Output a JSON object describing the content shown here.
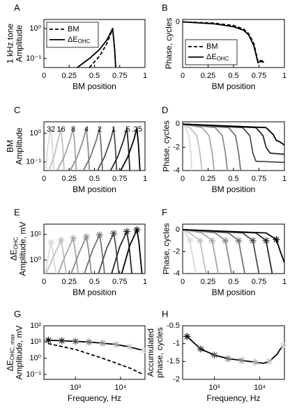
{
  "chart_data": [
    {
      "type": "line",
      "panel": "A",
      "xlabel": "BM position",
      "ylabel": [
        "1 kHz tone",
        "Amplitude"
      ],
      "xlim": [
        0,
        1
      ],
      "xticks": [
        0,
        0.25,
        0.5,
        0.75,
        1
      ],
      "ylim": [
        0.05,
        2
      ],
      "ylog": true,
      "yticks": [
        {
          "value": 0.1,
          "label": "10⁻¹"
        },
        {
          "value": 1,
          "label": "10⁰"
        }
      ],
      "legend": "upper left",
      "series": [
        {
          "name": "BM",
          "color": "#000000",
          "dash": true,
          "x": [
            0.45,
            0.55,
            0.62,
            0.67,
            0.68,
            0.7,
            0.71
          ],
          "values": [
            0.05,
            0.12,
            0.3,
            0.8,
            1,
            0.2,
            0.05
          ]
        },
        {
          "name": "ΔE",
          "name_sub": "OHC",
          "color": "#000000",
          "x": [
            0.33,
            0.45,
            0.55,
            0.62,
            0.68,
            0.7,
            0.71
          ],
          "values": [
            0.05,
            0.1,
            0.2,
            0.4,
            1,
            0.2,
            0.05
          ]
        }
      ]
    },
    {
      "type": "line",
      "panel": "B",
      "xlabel": "BM position",
      "ylabel": "Phase, cycles",
      "xlim": [
        0,
        1
      ],
      "xticks": [
        0,
        0.25,
        0.5,
        0.75,
        1
      ],
      "ylim": [
        -3.8,
        0.2
      ],
      "yticks": [
        0
      ],
      "legend": "lower left",
      "series": [
        {
          "name": "BM",
          "color": "#000000",
          "dash": true,
          "x": [
            0,
            0.3,
            0.5,
            0.6,
            0.65,
            0.7,
            0.74,
            0.76,
            0.8
          ],
          "values": [
            0,
            -0.1,
            -0.3,
            -0.6,
            -1,
            -1.8,
            -3.3,
            -3.2,
            -3.3
          ]
        },
        {
          "name": "ΔE",
          "name_sub": "OHC",
          "color": "#000000",
          "x": [
            0,
            0.3,
            0.5,
            0.6,
            0.65,
            0.7,
            0.74,
            0.76,
            0.8
          ],
          "values": [
            0,
            -0.15,
            -0.4,
            -0.7,
            -1.1,
            -2,
            -3.4,
            -3.3,
            -3.35
          ]
        }
      ]
    },
    {
      "type": "line",
      "panel": "C",
      "xlabel": "BM position",
      "ylabel": [
        "BM",
        "Amplitude"
      ],
      "xlim": [
        0,
        1
      ],
      "xticks": [
        0,
        0.25,
        0.5,
        0.75,
        1
      ],
      "ylim": [
        0.05,
        2.5
      ],
      "ylog": true,
      "yticks": [
        {
          "value": 0.1,
          "label": "10⁻¹"
        },
        {
          "value": 1,
          "label": "10⁰"
        }
      ],
      "series_labels": "peak",
      "series": [
        {
          "name": "32",
          "color": "#d9d9d9",
          "x": [
            0.02,
            0.04,
            0.07,
            0.085,
            0.1
          ],
          "values": [
            0.06,
            0.4,
            1.5,
            0.3,
            0.05
          ]
        },
        {
          "name": "16",
          "color": "#bfbfbf",
          "x": [
            0.05,
            0.1,
            0.14,
            0.17,
            0.185,
            0.2
          ],
          "values": [
            0.05,
            0.15,
            0.6,
            1.5,
            0.4,
            0.05
          ]
        },
        {
          "name": "8",
          "color": "#a6a6a6",
          "x": [
            0.13,
            0.2,
            0.26,
            0.29,
            0.305,
            0.32
          ],
          "values": [
            0.05,
            0.15,
            0.6,
            1.5,
            0.4,
            0.05
          ]
        },
        {
          "name": "4",
          "color": "#8c8c8c",
          "x": [
            0.26,
            0.33,
            0.39,
            0.42,
            0.435,
            0.45
          ],
          "values": [
            0.05,
            0.15,
            0.6,
            1.5,
            0.4,
            0.05
          ]
        },
        {
          "name": "2",
          "color": "#737373",
          "x": [
            0.39,
            0.46,
            0.52,
            0.55,
            0.565,
            0.58
          ],
          "values": [
            0.05,
            0.15,
            0.6,
            1.5,
            0.4,
            0.05
          ]
        },
        {
          "name": "1",
          "color": "#4d4d4d",
          "x": [
            0.53,
            0.6,
            0.66,
            0.69,
            0.705,
            0.72
          ],
          "values": [
            0.05,
            0.15,
            0.6,
            1.5,
            0.4,
            0.05
          ]
        },
        {
          "name": ".5",
          "color": "#262626",
          "x": [
            0.66,
            0.73,
            0.79,
            0.82,
            0.835,
            0.85
          ],
          "values": [
            0.05,
            0.15,
            0.6,
            1.5,
            0.4,
            0.05
          ]
        },
        {
          "name": ".25",
          "color": "#000000",
          "x": [
            0.76,
            0.83,
            0.89,
            0.92,
            0.935,
            0.95
          ],
          "values": [
            0.05,
            0.15,
            0.6,
            1.5,
            0.4,
            0.05
          ]
        }
      ]
    },
    {
      "type": "line",
      "panel": "D",
      "xlabel": "BM position",
      "ylabel": "Phase, cycles",
      "xlim": [
        0,
        1
      ],
      "xticks": [
        0,
        0.25,
        0.5,
        0.75,
        1
      ],
      "ylim": [
        -4,
        0.2
      ],
      "yticks": [
        0,
        -2,
        -4
      ],
      "series": [
        {
          "color": "#d9d9d9",
          "x": [
            0,
            0.03,
            0.06,
            0.08,
            0.09
          ],
          "values": [
            0,
            -0.3,
            -1,
            -2.5,
            -4
          ]
        },
        {
          "color": "#bfbfbf",
          "x": [
            0,
            0.07,
            0.14,
            0.17,
            0.19
          ],
          "values": [
            0,
            -0.3,
            -1,
            -2.5,
            -4
          ]
        },
        {
          "color": "#a6a6a6",
          "x": [
            0,
            0.19,
            0.26,
            0.29,
            0.31
          ],
          "values": [
            0,
            -0.3,
            -1,
            -2.5,
            -4
          ]
        },
        {
          "color": "#8c8c8c",
          "x": [
            0,
            0.32,
            0.39,
            0.42,
            0.44
          ],
          "values": [
            0,
            -0.3,
            -1,
            -2.5,
            -4
          ]
        },
        {
          "color": "#737373",
          "x": [
            0,
            0.45,
            0.52,
            0.55,
            0.57
          ],
          "values": [
            0,
            -0.3,
            -1,
            -2.5,
            -4
          ]
        },
        {
          "color": "#4d4d4d",
          "x": [
            0,
            0.59,
            0.66,
            0.69,
            0.72,
            1
          ],
          "values": [
            0,
            -0.3,
            -1,
            -2.5,
            -3.2,
            -3.3
          ]
        },
        {
          "color": "#262626",
          "x": [
            0,
            0.72,
            0.79,
            0.82,
            0.86,
            1
          ],
          "values": [
            0,
            -0.3,
            -1,
            -2,
            -2.5,
            -2.6
          ]
        },
        {
          "color": "#000000",
          "x": [
            0,
            0.82,
            0.89,
            0.92,
            0.95,
            1
          ],
          "values": [
            0,
            -0.3,
            -0.9,
            -1.4,
            -1.5,
            -1.8
          ]
        }
      ]
    },
    {
      "type": "line",
      "panel": "E",
      "xlabel": "BM position",
      "ylabel": [
        {
          "text": "ΔE",
          "sub": "OHC"
        },
        "Amplitude, mV"
      ],
      "xlim": [
        0,
        1
      ],
      "xticks": [
        0,
        0.25,
        0.5,
        0.75,
        1
      ],
      "ylim": [
        0.3,
        25
      ],
      "ylog": true,
      "yticks": [
        {
          "value": 1,
          "label": "10⁰"
        },
        {
          "value": 10,
          "label": "10¹"
        }
      ],
      "series": [
        {
          "color": "#d9d9d9",
          "x": [
            0.01,
            0.04,
            0.07,
            0.09,
            0.12
          ],
          "values": [
            0.3,
            1.2,
            5,
            1.7,
            0.3
          ]
        },
        {
          "color": "#bfbfbf",
          "x": [
            0.02,
            0.1,
            0.17,
            0.19,
            0.22
          ],
          "values": [
            0.3,
            1.5,
            6,
            2,
            0.3
          ]
        },
        {
          "color": "#a6a6a6",
          "x": [
            0.14,
            0.22,
            0.29,
            0.31,
            0.34
          ],
          "values": [
            0.3,
            1.8,
            7,
            2.3,
            0.3
          ]
        },
        {
          "color": "#8c8c8c",
          "x": [
            0.27,
            0.35,
            0.42,
            0.44,
            0.47
          ],
          "values": [
            0.3,
            2,
            8,
            2.7,
            0.3
          ]
        },
        {
          "color": "#737373",
          "x": [
            0.4,
            0.48,
            0.55,
            0.57,
            0.6
          ],
          "values": [
            0.3,
            2.4,
            9.5,
            3.2,
            0.3
          ]
        },
        {
          "color": "#4d4d4d",
          "x": [
            0.54,
            0.62,
            0.69,
            0.71,
            0.74
          ],
          "values": [
            0.3,
            2.8,
            11,
            3.7,
            0.3
          ]
        },
        {
          "color": "#262626",
          "x": [
            0.67,
            0.75,
            0.82,
            0.84,
            0.87
          ],
          "values": [
            0.3,
            3.3,
            13,
            4.3,
            0.3
          ]
        },
        {
          "color": "#000000",
          "x": [
            0.77,
            0.85,
            0.92,
            0.94,
            0.97
          ],
          "values": [
            0.3,
            3.8,
            15,
            5,
            0.3
          ]
        }
      ],
      "markers": {
        "x": [
          0.07,
          0.17,
          0.29,
          0.42,
          0.55,
          0.69,
          0.82,
          0.92
        ],
        "values": [
          5,
          6,
          7,
          8,
          9.5,
          11,
          13,
          15
        ],
        "colors": [
          "#d9d9d9",
          "#bfbfbf",
          "#a6a6a6",
          "#8c8c8c",
          "#737373",
          "#4d4d4d",
          "#262626",
          "#000000"
        ]
      }
    },
    {
      "type": "line",
      "panel": "F",
      "xlabel": "BM position",
      "ylabel": "Phase, cycles",
      "xlim": [
        0,
        1
      ],
      "xticks": [
        0,
        0.25,
        0.5,
        0.75,
        1
      ],
      "ylim": [
        -4,
        0.5
      ],
      "yticks": [
        0,
        -2,
        -4
      ],
      "series": [
        {
          "color": "#d9d9d9",
          "x": [
            0,
            0.03,
            0.07,
            0.1,
            0.13
          ],
          "values": [
            0,
            -0.3,
            -1,
            -2.5,
            -4
          ]
        },
        {
          "color": "#bfbfbf",
          "x": [
            0,
            0.07,
            0.17,
            0.2,
            0.23
          ],
          "values": [
            0,
            -0.3,
            -1,
            -2.5,
            -4
          ]
        },
        {
          "color": "#a6a6a6",
          "x": [
            0,
            0.19,
            0.29,
            0.32,
            0.35
          ],
          "values": [
            0,
            -0.3,
            -1,
            -2.5,
            -4
          ]
        },
        {
          "color": "#8c8c8c",
          "x": [
            0,
            0.32,
            0.42,
            0.45,
            0.48
          ],
          "values": [
            0,
            -0.3,
            -1,
            -2.5,
            -4
          ]
        },
        {
          "color": "#737373",
          "x": [
            0,
            0.45,
            0.55,
            0.58,
            0.61
          ],
          "values": [
            0,
            -0.3,
            -1,
            -2.5,
            -4
          ]
        },
        {
          "color": "#4d4d4d",
          "x": [
            0,
            0.59,
            0.69,
            0.72,
            0.75
          ],
          "values": [
            0,
            -0.3,
            -1,
            -2.5,
            -4
          ]
        },
        {
          "color": "#262626",
          "x": [
            0,
            0.72,
            0.82,
            0.85,
            0.88
          ],
          "values": [
            0,
            -0.3,
            -1,
            -2.5,
            -4
          ]
        },
        {
          "color": "#000000",
          "x": [
            0,
            0.82,
            0.92,
            0.96,
            1
          ],
          "values": [
            0,
            -0.3,
            -0.9,
            -2,
            -3
          ]
        }
      ],
      "markers": {
        "x": [
          0.07,
          0.17,
          0.29,
          0.42,
          0.55,
          0.69,
          0.82,
          0.92
        ],
        "values": [
          -1,
          -1,
          -1,
          -1,
          -1,
          -1,
          -1,
          -0.9
        ],
        "colors": [
          "#d9d9d9",
          "#bfbfbf",
          "#a6a6a6",
          "#8c8c8c",
          "#737373",
          "#4d4d4d",
          "#262626",
          "#000000"
        ]
      }
    },
    {
      "type": "line",
      "panel": "G",
      "xlabel": "Frequency, Hz",
      "ylabel": [
        {
          "text": "ΔE",
          "sub": "OHC, max"
        },
        "Amplitude, mV"
      ],
      "xlim": [
        200,
        35000
      ],
      "xlog": true,
      "xticks": [
        {
          "value": 1000,
          "label": "10³"
        },
        {
          "value": 10000,
          "label": "10⁴"
        }
      ],
      "ylim": [
        0.05,
        100
      ],
      "ylog": true,
      "yticks": [
        {
          "value": 0.1,
          "label": "10⁻¹"
        },
        {
          "value": 1,
          "label": "10⁰"
        },
        {
          "value": 10,
          "label": "10¹"
        },
        {
          "value": 100,
          "label": "10²"
        }
      ],
      "series": [
        {
          "color": "#000000",
          "x": [
            250,
            500,
            1000,
            2000,
            4000,
            8000,
            16000,
            32000
          ],
          "values": [
            13,
            12,
            11,
            10,
            8.5,
            7,
            5,
            3
          ]
        },
        {
          "color": "#000000",
          "dash": true,
          "x": [
            250,
            1000,
            4000,
            16000,
            32000
          ],
          "values": [
            8,
            3.5,
            1,
            0.25,
            0.1
          ]
        }
      ],
      "markers": {
        "x": [
          250,
          500,
          1000,
          2000,
          4000,
          8000,
          16000,
          32000
        ],
        "values": [
          13,
          12,
          11,
          10,
          8.5,
          7,
          5,
          3
        ],
        "colors": [
          "#000000",
          "#262626",
          "#4d4d4d",
          "#737373",
          "#8c8c8c",
          "#a6a6a6",
          "#bfbfbf",
          "#d9d9d9"
        ]
      }
    },
    {
      "type": "line",
      "panel": "H",
      "xlabel": "Frequency, Hz",
      "ylabel": [
        "Accumulated",
        "phase, cycles"
      ],
      "xlim": [
        200,
        35000
      ],
      "xlog": true,
      "xticks": [
        {
          "value": 1000,
          "label": "10³"
        },
        {
          "value": 10000,
          "label": "10⁴"
        }
      ],
      "ylim": [
        -2,
        -0.5
      ],
      "yticks": [
        -0.5,
        -1,
        -1.5,
        -2
      ],
      "series": [
        {
          "color": "#000000",
          "x": [
            250,
            500,
            1000,
            2000,
            4000,
            8000,
            12000,
            16000,
            24000,
            32000
          ],
          "values": [
            -0.8,
            -1.15,
            -1.32,
            -1.42,
            -1.47,
            -1.52,
            -1.55,
            -1.5,
            -1.3,
            -1.05
          ]
        }
      ],
      "markers": {
        "x": [
          250,
          500,
          1000,
          2000,
          4000,
          8000,
          16000,
          32000
        ],
        "values": [
          -0.8,
          -1.15,
          -1.32,
          -1.42,
          -1.47,
          -1.52,
          -1.5,
          -1.05
        ],
        "colors": [
          "#000000",
          "#262626",
          "#4d4d4d",
          "#737373",
          "#8c8c8c",
          "#a6a6a6",
          "#bfbfbf",
          "#d9d9d9"
        ]
      }
    }
  ]
}
